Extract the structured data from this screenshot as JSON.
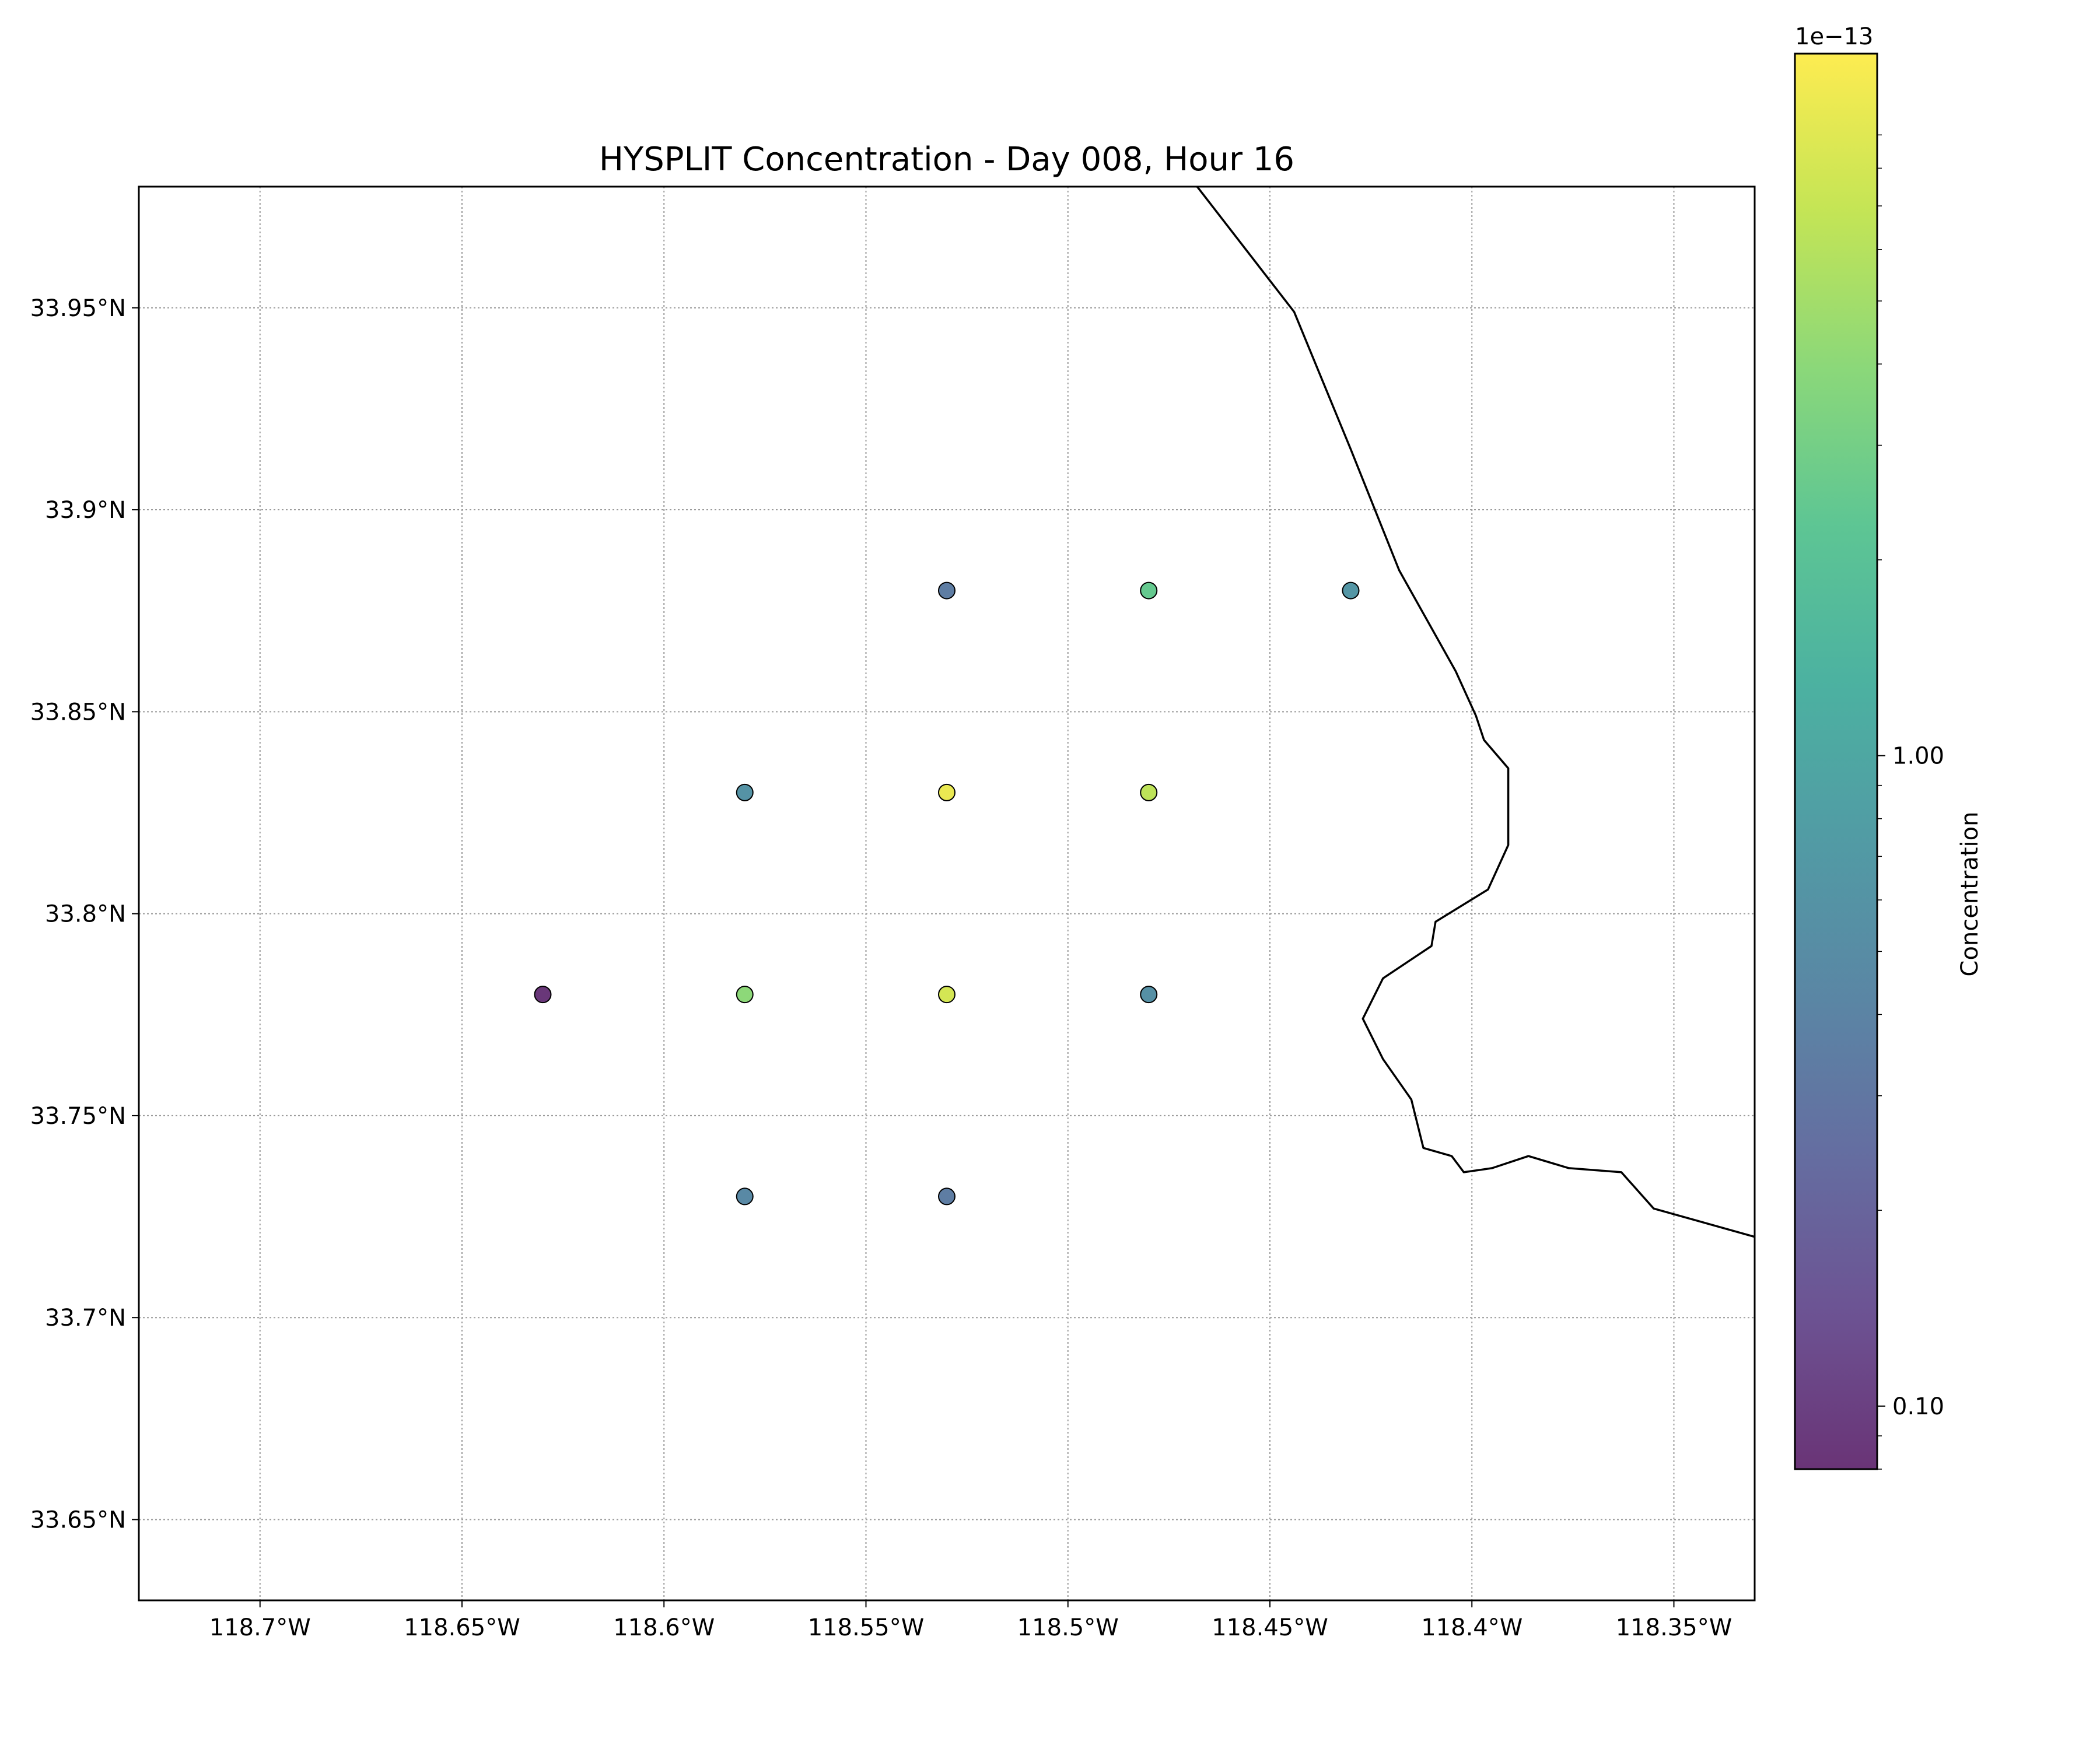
{
  "chart_data": {
    "type": "scatter",
    "title": "HYSPLIT Concentration - Day 008, Hour 16",
    "xlabel": "",
    "ylabel": "",
    "xlim": [
      -118.73,
      -118.33
    ],
    "ylim": [
      33.63,
      33.98
    ],
    "grid": true,
    "x_ticks": [
      {
        "value": -118.7,
        "label": "118.7°W"
      },
      {
        "value": -118.65,
        "label": "118.65°W"
      },
      {
        "value": -118.6,
        "label": "118.6°W"
      },
      {
        "value": -118.55,
        "label": "118.55°W"
      },
      {
        "value": -118.5,
        "label": "118.5°W"
      },
      {
        "value": -118.45,
        "label": "118.45°W"
      },
      {
        "value": -118.4,
        "label": "118.4°W"
      },
      {
        "value": -118.35,
        "label": "118.35°W"
      }
    ],
    "y_ticks": [
      {
        "value": 33.65,
        "label": "33.65°N"
      },
      {
        "value": 33.7,
        "label": "33.7°N"
      },
      {
        "value": 33.75,
        "label": "33.75°N"
      },
      {
        "value": 33.8,
        "label": "33.8°N"
      },
      {
        "value": 33.85,
        "label": "33.85°N"
      },
      {
        "value": 33.9,
        "label": "33.9°N"
      },
      {
        "value": 33.95,
        "label": "33.95°N"
      }
    ],
    "points": [
      {
        "lon": -118.53,
        "lat": 33.88,
        "value": 0.35
      },
      {
        "lon": -118.48,
        "lat": 33.88,
        "value": 2.5
      },
      {
        "lon": -118.43,
        "lat": 33.88,
        "value": 0.65
      },
      {
        "lon": -118.58,
        "lat": 33.83,
        "value": 0.6
      },
      {
        "lon": -118.53,
        "lat": 33.83,
        "value": 10.0
      },
      {
        "lon": -118.48,
        "lat": 33.83,
        "value": 6.5
      },
      {
        "lon": -118.63,
        "lat": 33.78,
        "value": 0.085
      },
      {
        "lon": -118.58,
        "lat": 33.78,
        "value": 4.0
      },
      {
        "lon": -118.53,
        "lat": 33.78,
        "value": 8.0
      },
      {
        "lon": -118.48,
        "lat": 33.78,
        "value": 0.55
      },
      {
        "lon": -118.58,
        "lat": 33.73,
        "value": 0.45
      },
      {
        "lon": -118.53,
        "lat": 33.73,
        "value": 0.35
      }
    ],
    "coastline": [
      [
        -118.468,
        33.98
      ],
      [
        -118.444,
        33.949
      ],
      [
        -118.43,
        33.915
      ],
      [
        -118.418,
        33.885
      ],
      [
        -118.404,
        33.86
      ],
      [
        -118.399,
        33.849
      ],
      [
        -118.397,
        33.843
      ],
      [
        -118.391,
        33.836
      ],
      [
        -118.391,
        33.817
      ],
      [
        -118.396,
        33.806
      ],
      [
        -118.409,
        33.798
      ],
      [
        -118.41,
        33.792
      ],
      [
        -118.422,
        33.784
      ],
      [
        -118.427,
        33.774
      ],
      [
        -118.422,
        33.764
      ],
      [
        -118.415,
        33.754
      ],
      [
        -118.412,
        33.742
      ],
      [
        -118.405,
        33.74
      ],
      [
        -118.402,
        33.736
      ],
      [
        -118.395,
        33.737
      ],
      [
        -118.386,
        33.74
      ],
      [
        -118.376,
        33.737
      ],
      [
        -118.363,
        33.736
      ],
      [
        -118.355,
        33.727
      ],
      [
        -118.33,
        33.72
      ]
    ],
    "colorbar": {
      "label": "Concentration",
      "scale": "log",
      "multiplier": "1e−13",
      "range": [
        0.08,
        12.0
      ],
      "ticks": [
        {
          "value": 0.1,
          "label": "0.10"
        },
        {
          "value": 1.0,
          "label": "1.00"
        }
      ],
      "colormap": [
        "#440154",
        "#482878",
        "#3e4989",
        "#31688e",
        "#26828e",
        "#1f9e89",
        "#35b779",
        "#6ece58",
        "#b5de2b",
        "#fde725"
      ],
      "alpha": 0.8
    }
  }
}
